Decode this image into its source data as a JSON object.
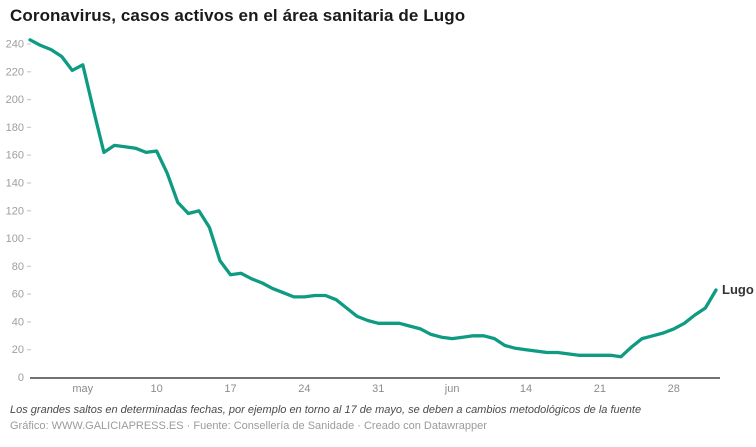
{
  "title": "Coronavirus, casos activos en el área sanitaria de Lugo",
  "footer": {
    "note": "Los grandes saltos en determinadas fechas, por ejemplo en torno al 17 de mayo, se deben a cambios metodológicos de la fuente",
    "credits": "Gráfico: WWW.GALICIAPRESS.ES · Fuente: Consellería de Sanidade · Creado con Datawrapper"
  },
  "colors": {
    "line": "#0e9b82",
    "axis_baseline": "#444444",
    "y_tick": "#cccccc",
    "y_label": "#9e9e9e",
    "x_label": "#8c8c8c",
    "series_label": "#333333"
  },
  "chart_data": {
    "type": "line",
    "title": "Coronavirus, casos activos en el área sanitaria de Lugo",
    "xlabel": "",
    "ylabel": "",
    "grid": false,
    "legend_position": "end-of-line-label",
    "y_axis": {
      "ticks": [
        0,
        20,
        40,
        60,
        80,
        100,
        120,
        140,
        160,
        180,
        200,
        220,
        240
      ],
      "min": 0,
      "max": 240
    },
    "x_axis": {
      "unit": "daily points",
      "tick_labels": [
        "may",
        "10",
        "17",
        "24",
        "31",
        "jun",
        "14",
        "21",
        "28"
      ],
      "tick_point_index": [
        5,
        12,
        19,
        26,
        33,
        40,
        47,
        54,
        61
      ]
    },
    "series": [
      {
        "name": "Lugo",
        "color": "#0e9b82",
        "values": [
          243,
          239,
          236,
          231,
          221,
          225,
          193,
          162,
          167,
          166,
          165,
          162,
          163,
          147,
          126,
          118,
          120,
          108,
          84,
          74,
          75,
          71,
          68,
          64,
          61,
          58,
          58,
          59,
          59,
          56,
          50,
          44,
          41,
          39,
          39,
          39,
          37,
          35,
          31,
          29,
          28,
          29,
          30,
          30,
          28,
          23,
          21,
          20,
          19,
          18,
          18,
          17,
          16,
          16,
          16,
          16,
          15,
          22,
          28,
          30,
          32,
          35,
          39,
          45,
          50,
          63
        ]
      }
    ]
  }
}
